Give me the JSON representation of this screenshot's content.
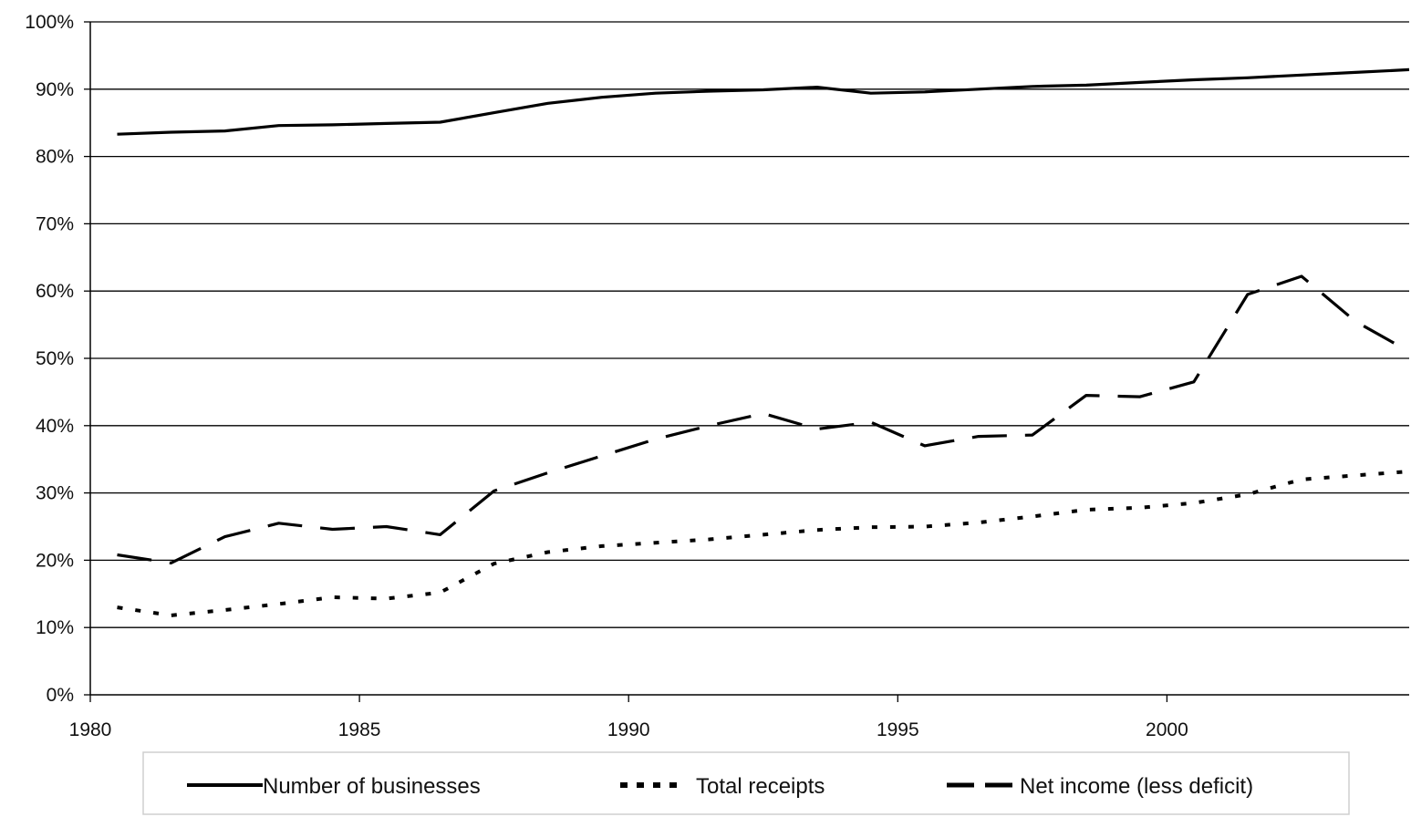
{
  "chart_data": {
    "type": "line",
    "title": "",
    "xlabel": "",
    "ylabel": "",
    "xlim": [
      1980,
      2004.5
    ],
    "ylim": [
      0,
      100
    ],
    "x_ticks": [
      1980,
      1985,
      1990,
      1995,
      2000
    ],
    "x_tick_labels": [
      "1980",
      "1985",
      "1990",
      "1995",
      "2000"
    ],
    "y_ticks": [
      0,
      10,
      20,
      30,
      40,
      50,
      60,
      70,
      80,
      90,
      100
    ],
    "y_tick_labels": [
      "0%",
      "10%",
      "20%",
      "30%",
      "40%",
      "50%",
      "60%",
      "70%",
      "80%",
      "90%",
      "100%"
    ],
    "grid": "horizontal",
    "legend_position": "bottom",
    "x": [
      1980.5,
      1981.5,
      1982.5,
      1983.5,
      1984.5,
      1985.5,
      1986.5,
      1987.5,
      1988.5,
      1989.5,
      1990.5,
      1991.5,
      1992.5,
      1993.5,
      1994.5,
      1995.5,
      1996.5,
      1997.5,
      1998.5,
      1999.5,
      2000.5,
      2001.5,
      2002.5,
      2003.5,
      2004.5
    ],
    "series": [
      {
        "name": "Number of businesses",
        "style": "solid",
        "values": [
          83.3,
          83.6,
          83.8,
          84.6,
          84.7,
          84.9,
          85.1,
          86.5,
          87.9,
          88.8,
          89.4,
          89.7,
          89.9,
          90.3,
          89.4,
          89.6,
          90.0,
          90.4,
          90.6,
          91.0,
          91.4,
          91.7,
          92.1,
          92.5,
          92.9
        ]
      },
      {
        "name": "Total receipts",
        "style": "dotted",
        "values": [
          13.0,
          11.8,
          12.6,
          13.5,
          14.5,
          14.3,
          15.2,
          19.5,
          21.2,
          22.1,
          22.6,
          23.1,
          23.8,
          24.5,
          24.9,
          25.0,
          25.6,
          26.5,
          27.5,
          27.8,
          28.5,
          29.8,
          32.0,
          32.6,
          33.2
        ]
      },
      {
        "name": "Net income (less deficit)",
        "style": "dashed",
        "values": [
          20.8,
          19.6,
          23.5,
          25.5,
          24.6,
          25.0,
          23.8,
          30.3,
          33.0,
          35.5,
          38.0,
          40.0,
          41.8,
          39.5,
          40.5,
          37.0,
          38.4,
          38.6,
          44.5,
          44.3,
          46.5,
          59.5,
          62.2,
          55.5,
          51.0
        ]
      }
    ]
  }
}
